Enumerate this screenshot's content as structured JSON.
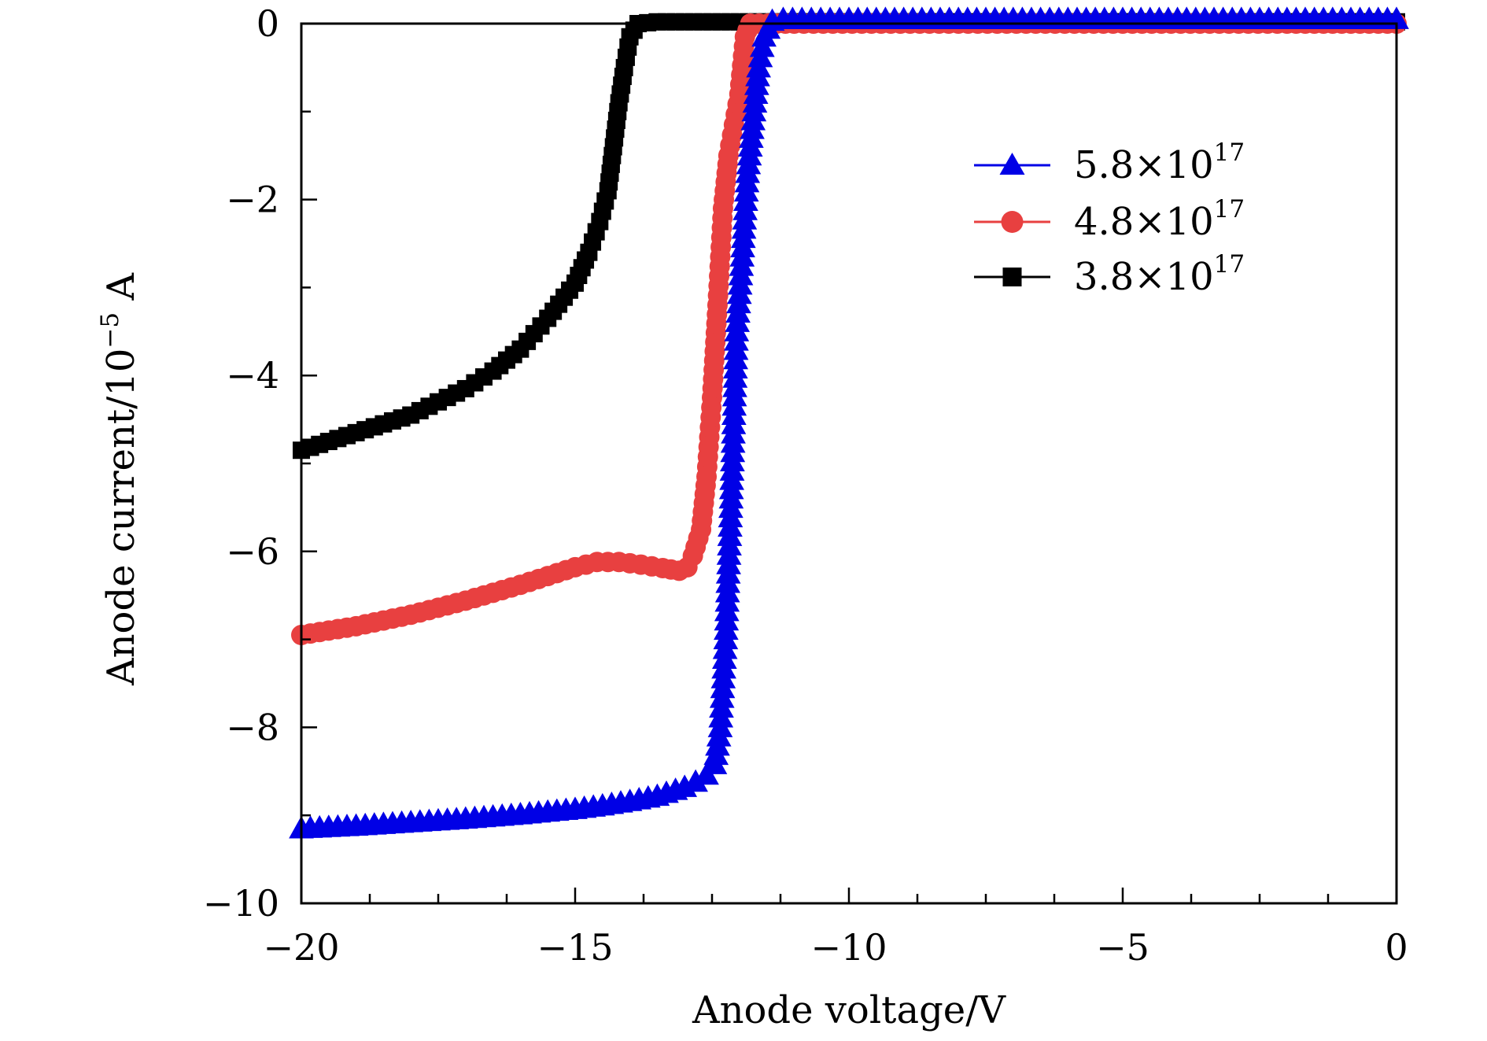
{
  "chart_data": {
    "type": "line",
    "title": "",
    "xlabel": "Anode voltage/V",
    "ylabel": {
      "main": "Anode current/10",
      "exponent": "−5",
      "unit": " A"
    },
    "xlim": [
      -20,
      0
    ],
    "ylim": [
      -10,
      0
    ],
    "x_ticks": [
      {
        "value": -20,
        "label": "−20"
      },
      {
        "value": -15,
        "label": "−15"
      },
      {
        "value": -10,
        "label": "−10"
      },
      {
        "value": -5,
        "label": "−5"
      },
      {
        "value": 0,
        "label": "0"
      }
    ],
    "y_ticks": [
      {
        "value": 0,
        "label": "0"
      },
      {
        "value": -2,
        "label": "−2"
      },
      {
        "value": -4,
        "label": "−4"
      },
      {
        "value": -6,
        "label": "−6"
      },
      {
        "value": -8,
        "label": "−8"
      },
      {
        "value": -10,
        "label": "−10"
      }
    ],
    "x_minor_step": 1.25,
    "y_minor_step": 1,
    "grid": false,
    "legend_position": "top-right",
    "series": [
      {
        "name": "5.8×10^17",
        "legend_base": "5.8×10",
        "legend_exp": "17",
        "color": "#0000e6",
        "marker": "triangle",
        "points": [
          [
            -20.0,
            -9.15
          ],
          [
            -19.0,
            -9.12
          ],
          [
            -18.0,
            -9.08
          ],
          [
            -17.0,
            -9.04
          ],
          [
            -16.0,
            -8.99
          ],
          [
            -15.0,
            -8.93
          ],
          [
            -14.5,
            -8.89
          ],
          [
            -14.0,
            -8.84
          ],
          [
            -13.5,
            -8.78
          ],
          [
            -13.0,
            -8.68
          ],
          [
            -12.8,
            -8.62
          ],
          [
            -12.6,
            -8.54
          ],
          [
            -12.45,
            -8.42
          ],
          [
            -12.35,
            -8.0
          ],
          [
            -12.25,
            -7.0
          ],
          [
            -12.15,
            -5.4
          ],
          [
            -12.05,
            -3.5
          ],
          [
            -11.95,
            -2.65
          ],
          [
            -11.85,
            -1.7
          ],
          [
            -11.75,
            -1.1
          ],
          [
            -11.65,
            -0.5
          ],
          [
            -11.55,
            -0.15
          ],
          [
            -11.4,
            0.03
          ],
          [
            -11.2,
            0.05
          ],
          [
            -10.0,
            0.05
          ],
          [
            -8.0,
            0.05
          ],
          [
            -6.0,
            0.05
          ],
          [
            -4.0,
            0.05
          ],
          [
            -2.0,
            0.05
          ],
          [
            0.0,
            0.05
          ]
        ]
      },
      {
        "name": "4.8×10^17",
        "legend_base": "4.8×10",
        "legend_exp": "17",
        "color": "#e84040",
        "marker": "circle",
        "points": [
          [
            -20.0,
            -6.95
          ],
          [
            -19.0,
            -6.85
          ],
          [
            -18.0,
            -6.72
          ],
          [
            -17.0,
            -6.56
          ],
          [
            -16.0,
            -6.38
          ],
          [
            -15.0,
            -6.18
          ],
          [
            -14.6,
            -6.12
          ],
          [
            -14.2,
            -6.12
          ],
          [
            -13.8,
            -6.15
          ],
          [
            -13.4,
            -6.19
          ],
          [
            -13.1,
            -6.22
          ],
          [
            -12.95,
            -6.18
          ],
          [
            -12.85,
            -6.05
          ],
          [
            -12.7,
            -5.75
          ],
          [
            -12.6,
            -5.15
          ],
          [
            -12.5,
            -4.25
          ],
          [
            -12.4,
            -3.2
          ],
          [
            -12.3,
            -2.1
          ],
          [
            -12.2,
            -1.5
          ],
          [
            -12.1,
            -1.15
          ],
          [
            -12.0,
            -0.8
          ],
          [
            -11.9,
            -0.15
          ],
          [
            -11.8,
            0.0
          ],
          [
            -11.0,
            0.0
          ],
          [
            -8.0,
            0.0
          ],
          [
            -5.0,
            0.0
          ],
          [
            -2.0,
            0.0
          ],
          [
            0.0,
            0.0
          ]
        ]
      },
      {
        "name": "3.8×10^17",
        "legend_base": "3.8×10",
        "legend_exp": "17",
        "color": "#000000",
        "marker": "square",
        "points": [
          [
            -20.0,
            -4.85
          ],
          [
            -19.0,
            -4.65
          ],
          [
            -18.0,
            -4.45
          ],
          [
            -17.0,
            -4.15
          ],
          [
            -16.5,
            -3.95
          ],
          [
            -16.0,
            -3.7
          ],
          [
            -15.5,
            -3.35
          ],
          [
            -15.0,
            -2.95
          ],
          [
            -14.75,
            -2.6
          ],
          [
            -14.55,
            -2.25
          ],
          [
            -14.4,
            -1.9
          ],
          [
            -14.3,
            -1.4
          ],
          [
            -14.2,
            -0.9
          ],
          [
            -14.1,
            -0.5
          ],
          [
            -14.0,
            -0.15
          ],
          [
            -13.85,
            0.0
          ],
          [
            -13.5,
            0.02
          ],
          [
            -12.0,
            0.02
          ],
          [
            -10.0,
            0.02
          ],
          [
            -8.0,
            0.02
          ],
          [
            -5.0,
            0.02
          ],
          [
            -2.0,
            0.02
          ],
          [
            0.0,
            0.02
          ]
        ]
      }
    ]
  }
}
